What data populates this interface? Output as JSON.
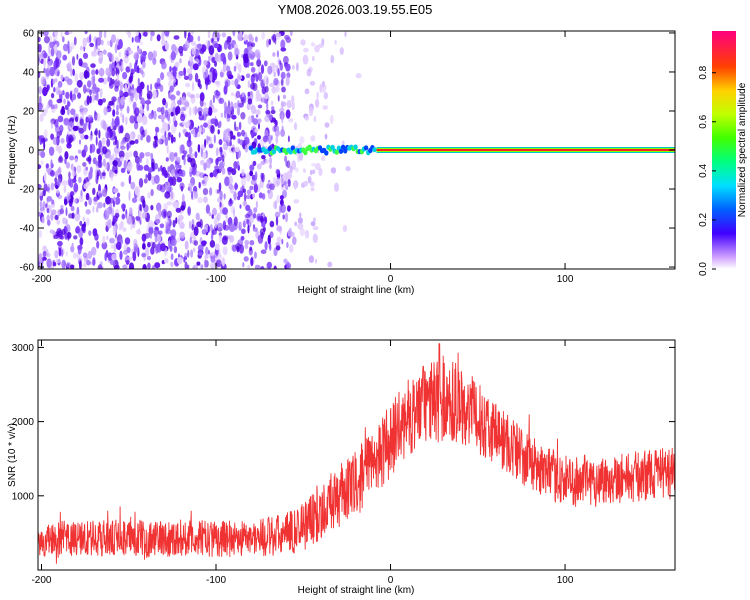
{
  "title": "YM08.2026.003.19.55.E05",
  "chart_data": [
    {
      "type": "heatmap",
      "title": "YM08.2026.003.19.55.E05",
      "xlabel": "Height of straight line (km)",
      "ylabel": "Frequency (Hz)",
      "xlim": [
        -202,
        163
      ],
      "ylim": [
        -61,
        61
      ],
      "x_ticks": [
        -200,
        -100,
        0,
        100
      ],
      "y_ticks": [
        -60,
        -40,
        -20,
        0,
        20,
        40,
        60
      ],
      "colorbar": {
        "label": "Normalized spectral amplitude",
        "range": [
          0,
          0.97
        ],
        "ticks": [
          0.0,
          0.2,
          0.4,
          0.6,
          0.8
        ]
      },
      "features": {
        "noise_region_x": [
          -202,
          -58
        ],
        "noise_fade_end_x": -5,
        "main_line_frequency": 0,
        "line_start_x": -80,
        "line_full_amplitude_from_x": -8,
        "line_amplitude_max": 0.95
      }
    },
    {
      "type": "line",
      "xlabel": "Height of straight line (km)",
      "ylabel": "SNR (10 * v/v)",
      "xlim": [
        -202,
        163
      ],
      "ylim": [
        0,
        3100
      ],
      "x_ticks": [
        -200,
        -100,
        0,
        100
      ],
      "y_ticks": [
        1000,
        2000,
        3000
      ],
      "series": [
        {
          "name": "SNR",
          "color": "#f03232",
          "x": [
            -202,
            -180,
            -160,
            -140,
            -120,
            -100,
            -80,
            -60,
            -50,
            -40,
            -30,
            -20,
            -10,
            0,
            10,
            20,
            30,
            40,
            50,
            60,
            70,
            80,
            90,
            100,
            110,
            120,
            130,
            140,
            150,
            163
          ],
          "y": [
            400,
            420,
            430,
            420,
            430,
            420,
            430,
            470,
            600,
            800,
            980,
            1150,
            1450,
            1750,
            2050,
            2250,
            2300,
            2250,
            2050,
            1850,
            1650,
            1450,
            1300,
            1200,
            1200,
            1200,
            1250,
            1250,
            1300,
            1300
          ],
          "noise_spread": [
            250,
            250,
            250,
            250,
            250,
            250,
            250,
            300,
            350,
            400,
            420,
            450,
            480,
            500,
            520,
            550,
            600,
            550,
            480,
            450,
            420,
            380,
            350,
            350,
            350,
            350,
            350,
            350,
            350,
            350
          ],
          "peak": {
            "x": 28,
            "y": 3050
          }
        }
      ]
    }
  ]
}
